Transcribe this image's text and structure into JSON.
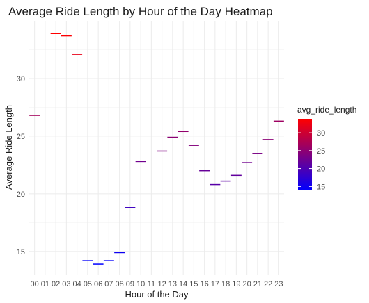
{
  "chart_data": {
    "type": "heatmap",
    "title": "Average Ride Length by Hour of the Day Heatmap",
    "xlabel": "Hour of the Day",
    "ylabel": "Average Ride Length",
    "categories": [
      "00",
      "01",
      "02",
      "03",
      "04",
      "05",
      "06",
      "07",
      "08",
      "09",
      "10",
      "11",
      "12",
      "13",
      "14",
      "15",
      "16",
      "17",
      "18",
      "19",
      "20",
      "21",
      "22",
      "23"
    ],
    "values": [
      26.8,
      null,
      33.9,
      33.7,
      32.1,
      14.2,
      13.9,
      14.2,
      14.9,
      18.8,
      22.8,
      null,
      23.7,
      24.9,
      25.4,
      24.2,
      22.0,
      20.8,
      21.1,
      21.6,
      22.7,
      23.5,
      24.7,
      26.3
    ],
    "y_ticks": [
      15,
      20,
      25,
      30
    ],
    "ylim": [
      13.0,
      35.0
    ],
    "grid": true,
    "legend": {
      "title": "avg_ride_length",
      "placement": "right",
      "ticks": [
        15,
        20,
        25,
        30
      ],
      "range": [
        13.9,
        33.9
      ],
      "color_low": "#0000ff",
      "color_high": "#ff0000"
    }
  }
}
